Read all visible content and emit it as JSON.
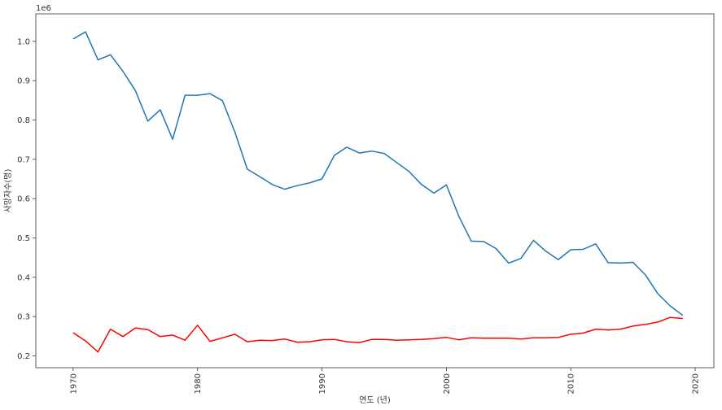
{
  "chart_data": {
    "type": "line",
    "title": "",
    "xlabel": "연도 (년)",
    "ylabel": "사망자수(명)",
    "y_offset_text": "1e6",
    "xlim": [
      1967,
      2021.5
    ],
    "ylim": [
      170000,
      1070000
    ],
    "x_ticks": [
      1970,
      1980,
      1990,
      2000,
      2010,
      2020
    ],
    "x_tick_labels": [
      "1970",
      "1980",
      "1990",
      "2000",
      "2010",
      "2020"
    ],
    "y_ticks": [
      200000,
      300000,
      400000,
      500000,
      600000,
      700000,
      800000,
      900000,
      1000000
    ],
    "y_tick_labels": [
      "0.2",
      "0.3",
      "0.4",
      "0.5",
      "0.6",
      "0.7",
      "0.8",
      "0.9",
      "1.0"
    ],
    "grid": false,
    "x": [
      1970,
      1971,
      1972,
      1973,
      1974,
      1975,
      1976,
      1977,
      1978,
      1979,
      1980,
      1981,
      1982,
      1983,
      1984,
      1985,
      1986,
      1987,
      1988,
      1989,
      1990,
      1991,
      1992,
      1993,
      1994,
      1995,
      1996,
      1997,
      1998,
      1999,
      2000,
      2001,
      2002,
      2003,
      2004,
      2005,
      2006,
      2007,
      2008,
      2009,
      2010,
      2011,
      2012,
      2013,
      2014,
      2015,
      2016,
      2017,
      2018,
      2019
    ],
    "series": [
      {
        "color": "#1f77b4",
        "values": [
          1006000,
          1024000,
          953000,
          966000,
          924000,
          875000,
          797000,
          826000,
          751000,
          863000,
          863000,
          867000,
          849000,
          769000,
          675000,
          656000,
          636000,
          624000,
          633000,
          640000,
          650000,
          710000,
          731000,
          716000,
          721000,
          715000,
          692000,
          669000,
          636000,
          614000,
          635000,
          555000,
          492000,
          491000,
          473000,
          436000,
          448000,
          494000,
          466000,
          445000,
          470000,
          471000,
          485000,
          437000,
          436000,
          438000,
          406000,
          358000,
          327000,
          303000
        ]
      },
      {
        "color": "#ff0000",
        "values": [
          259000,
          238000,
          210000,
          268000,
          249000,
          271000,
          267000,
          249000,
          253000,
          240000,
          278000,
          237000,
          246000,
          255000,
          236000,
          240000,
          239000,
          243000,
          235000,
          236000,
          241000,
          242000,
          236000,
          234000,
          242000,
          242000,
          240000,
          241000,
          242000,
          244000,
          247000,
          241000,
          246000,
          245000,
          245000,
          245000,
          243000,
          246000,
          246000,
          247000,
          255000,
          258000,
          268000,
          266000,
          268000,
          276000,
          280000,
          286000,
          298000,
          295000
        ]
      }
    ]
  }
}
